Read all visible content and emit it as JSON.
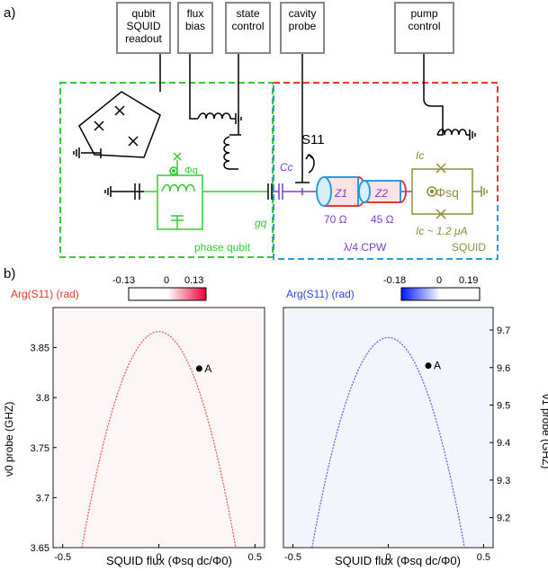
{
  "panel_a_label": "a)",
  "panel_b_label": "b)",
  "boxes": {
    "readout": [
      "qubit",
      "SQUID",
      "readout"
    ],
    "flux": [
      "flux",
      "bias"
    ],
    "state": [
      "state",
      "control"
    ],
    "cavity": [
      "cavity",
      "probe"
    ],
    "pump": [
      "pump",
      "control"
    ]
  },
  "circuit": {
    "phi_q": "Φq",
    "phi_sq": "Φsq",
    "s11": "S11",
    "cc": "Cc",
    "z1": "Z1",
    "z2": "Z2",
    "r1": "70 Ω",
    "r2": "45 Ω",
    "gq": "gq",
    "ic_top": "Ic",
    "ic_bottom": "Ic ~ 1.2 μA",
    "phase_qubit": "phase qubit",
    "cpw": "λ/4 CPW",
    "squid": "SQUID"
  },
  "colors": {
    "green": "#33cc33",
    "red": "#e8392c",
    "blue": "#2a9be0",
    "purple": "#7b3fc6",
    "olive": "#8e8f3a"
  },
  "chart_data": [
    {
      "type": "heatmap",
      "colorbar_label": "Arg(S11) (rad)",
      "colorbar_ticks": [
        "-0.13",
        "0",
        "0.13"
      ],
      "colorbar_range": [
        -0.13,
        0.13
      ],
      "xlabel": "SQUID flux (Φsq dc/Φ0)",
      "ylabel": "ν0 probe (GHZ)",
      "xlim": [
        -0.55,
        0.55
      ],
      "ylim": [
        3.65,
        3.89
      ],
      "xticks": [
        "-0.5",
        "0",
        "0.5"
      ],
      "yticks": [
        "3.65",
        "3.7",
        "3.75",
        "3.8",
        "3.85"
      ],
      "curve": {
        "x_range": [
          -0.4,
          0.4
        ],
        "peak_x": 0.0,
        "peak_y": 3.866
      },
      "marker": {
        "label": "A",
        "x": 0.21,
        "y": 3.829
      }
    },
    {
      "type": "heatmap",
      "colorbar_label": "Arg(S11) (rad)",
      "colorbar_ticks": [
        "-0.18",
        "0",
        "0.19"
      ],
      "colorbar_range": [
        -0.18,
        0.19
      ],
      "xlabel": "SQUID flux (Φsq dc/Φ0)",
      "ylabel": "ν1 probe (GHZ)",
      "xlim": [
        -0.55,
        0.55
      ],
      "ylim": [
        9.12,
        9.76
      ],
      "xticks": [
        "-0.5",
        "0",
        "0.5"
      ],
      "yticks": [
        "9.2",
        "9.3",
        "9.4",
        "9.5",
        "9.6",
        "9.7"
      ],
      "curve": {
        "x_range": [
          -0.4,
          0.4
        ],
        "peak_x": 0.0,
        "peak_y": 9.68
      },
      "marker": {
        "label": "A",
        "x": 0.21,
        "y": 9.605
      }
    }
  ]
}
